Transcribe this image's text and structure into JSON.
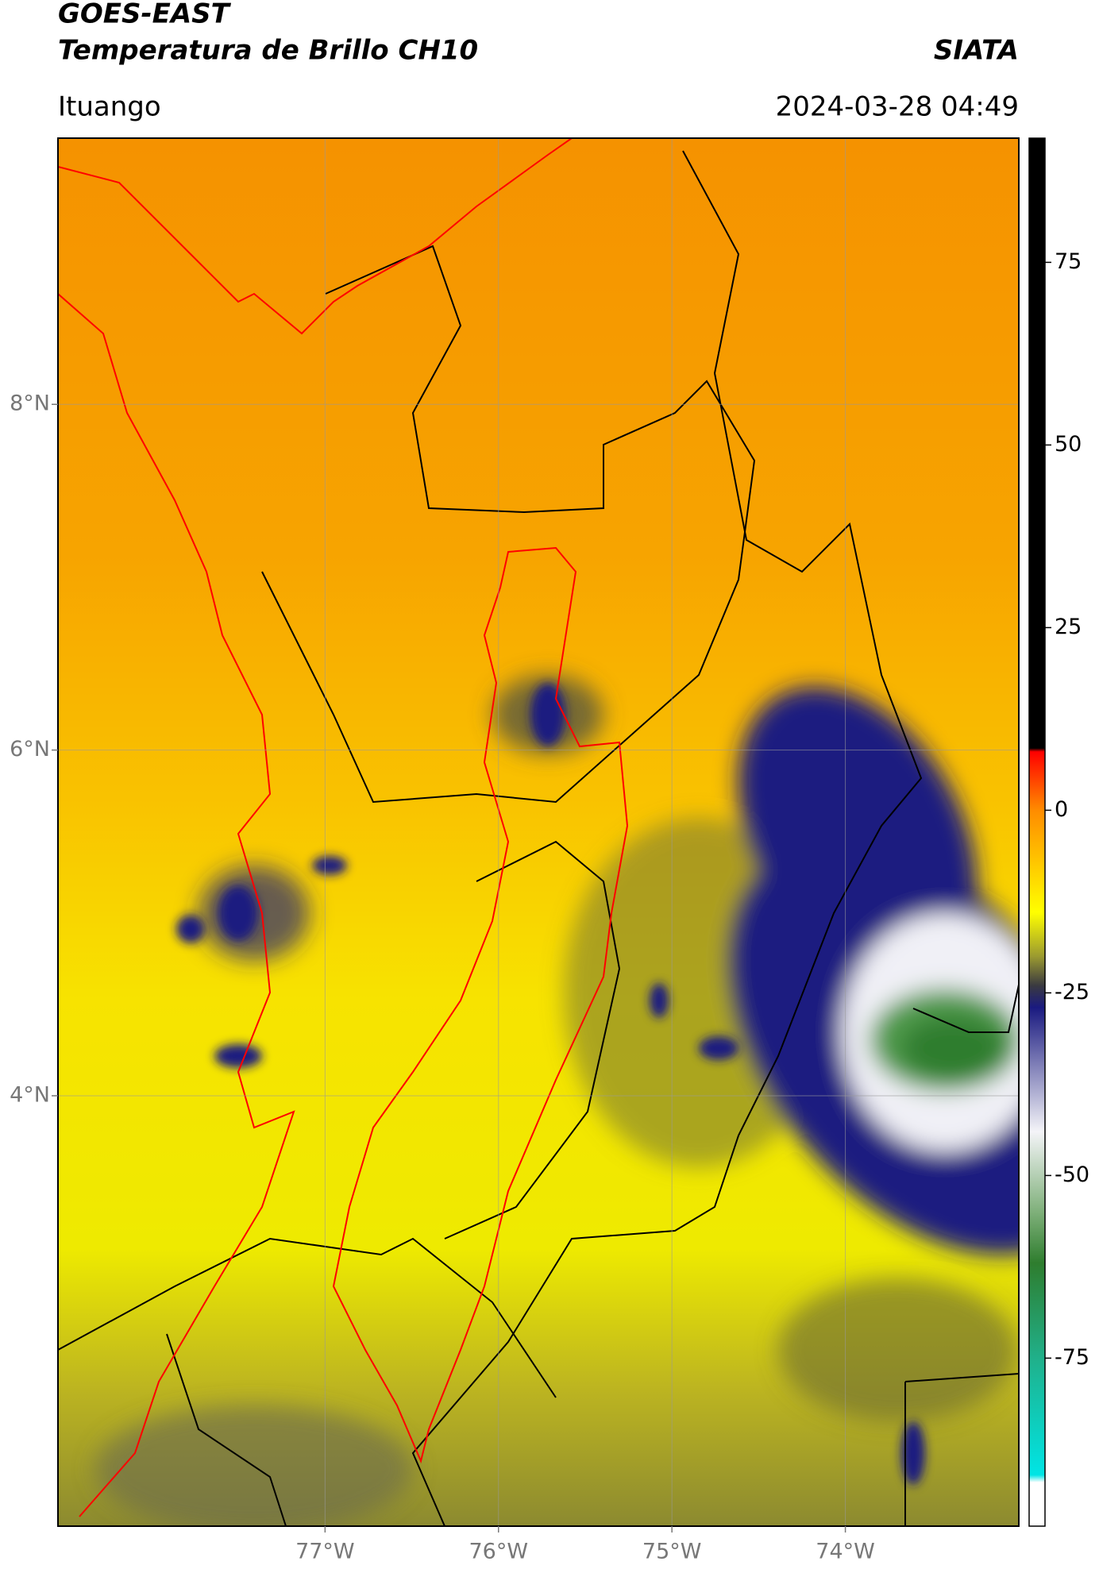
{
  "chart_data": {
    "type": "raster-map",
    "title": "GOES-EAST",
    "subtitle": "Temperatura de Brillo CH10",
    "source": "SIATA",
    "region": "Ituango",
    "timestamp": "2024-03-28 04:49",
    "xlim": [
      -78.54,
      -73.0
    ],
    "ylim": [
      1.51,
      9.54
    ],
    "xticks": [
      {
        "value": -77,
        "label": "77°W"
      },
      {
        "value": -76,
        "label": "76°W"
      },
      {
        "value": -75,
        "label": "75°W"
      },
      {
        "value": -74,
        "label": "74°W"
      }
    ],
    "yticks": [
      {
        "value": 8,
        "label": "8°N"
      },
      {
        "value": 6,
        "label": "6°N"
      },
      {
        "value": 4,
        "label": "4°N"
      }
    ],
    "grid": true,
    "colorbar": {
      "clim": [
        -98,
        92
      ],
      "ticks": [
        75,
        50,
        25,
        0,
        -25,
        -50,
        -75
      ],
      "stops": [
        {
          "value": 92,
          "color": "#000000"
        },
        {
          "value": 8.5,
          "color": "#000000"
        },
        {
          "value": 8,
          "color": "#ff0000"
        },
        {
          "value": 0,
          "color": "#ff8c00"
        },
        {
          "value": -14,
          "color": "#ffff00"
        },
        {
          "value": -20,
          "color": "#9b9a30"
        },
        {
          "value": -24,
          "color": "#3a3a40"
        },
        {
          "value": -27,
          "color": "#1a1a80"
        },
        {
          "value": -44,
          "color": "#f4f4f8"
        },
        {
          "value": -55,
          "color": "#7fb07a"
        },
        {
          "value": -62,
          "color": "#2e7d2e"
        },
        {
          "value": -75,
          "color": "#20b08a"
        },
        {
          "value": -91,
          "color": "#00e5e5"
        },
        {
          "value": -92,
          "color": "#ffffff"
        },
        {
          "value": -98,
          "color": "#ffffff"
        }
      ]
    }
  }
}
